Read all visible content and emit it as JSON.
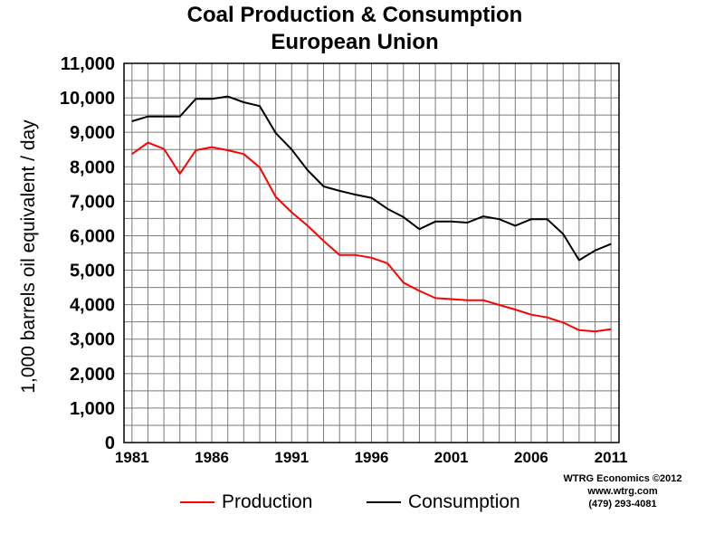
{
  "chart_data": {
    "type": "line",
    "title": "Coal Production & Consumption",
    "subtitle": "European Union",
    "ylabel": "1,000 barrels oil equivalent / day",
    "xlabel": "",
    "x": [
      1981,
      1982,
      1983,
      1984,
      1985,
      1986,
      1987,
      1988,
      1989,
      1990,
      1991,
      1992,
      1993,
      1994,
      1995,
      1996,
      1997,
      1998,
      1999,
      2000,
      2001,
      2002,
      2003,
      2004,
      2005,
      2006,
      2007,
      2008,
      2009,
      2010,
      2011
    ],
    "xlim": [
      1980.5,
      2011.5
    ],
    "ylim": [
      0,
      11000
    ],
    "x_ticks": [
      1981,
      1986,
      1991,
      1996,
      2001,
      2006,
      2011
    ],
    "y_ticks": [
      0,
      1000,
      2000,
      3000,
      4000,
      5000,
      6000,
      7000,
      8000,
      9000,
      10000,
      11000
    ],
    "y_tick_labels": [
      "0",
      "1,000",
      "2,000",
      "3,000",
      "4,000",
      "5,000",
      "6,000",
      "7,000",
      "8,000",
      "9,000",
      "10,000",
      "11,000"
    ],
    "grid": true,
    "legend_position": "bottom",
    "series": [
      {
        "name": "Production",
        "color": "#ff0000",
        "values": [
          8370,
          8700,
          8520,
          7800,
          8480,
          8570,
          8480,
          8370,
          7980,
          7130,
          6680,
          6290,
          5850,
          5440,
          5440,
          5360,
          5200,
          4640,
          4400,
          4190,
          4160,
          4130,
          4130,
          3990,
          3860,
          3710,
          3630,
          3480,
          3260,
          3220,
          3290
        ]
      },
      {
        "name": "Consumption",
        "color": "#000000",
        "values": [
          9320,
          9460,
          9460,
          9460,
          9970,
          9970,
          10040,
          9870,
          9760,
          8980,
          8500,
          7900,
          7430,
          7300,
          7190,
          7100,
          6780,
          6540,
          6190,
          6410,
          6410,
          6380,
          6560,
          6480,
          6290,
          6480,
          6480,
          6050,
          5290,
          5570,
          5760
        ]
      }
    ]
  },
  "credits": {
    "line1": "WTRG Economics  ©2012",
    "line2": "www.wtrg.com",
    "line3": "(479) 293-4081"
  }
}
